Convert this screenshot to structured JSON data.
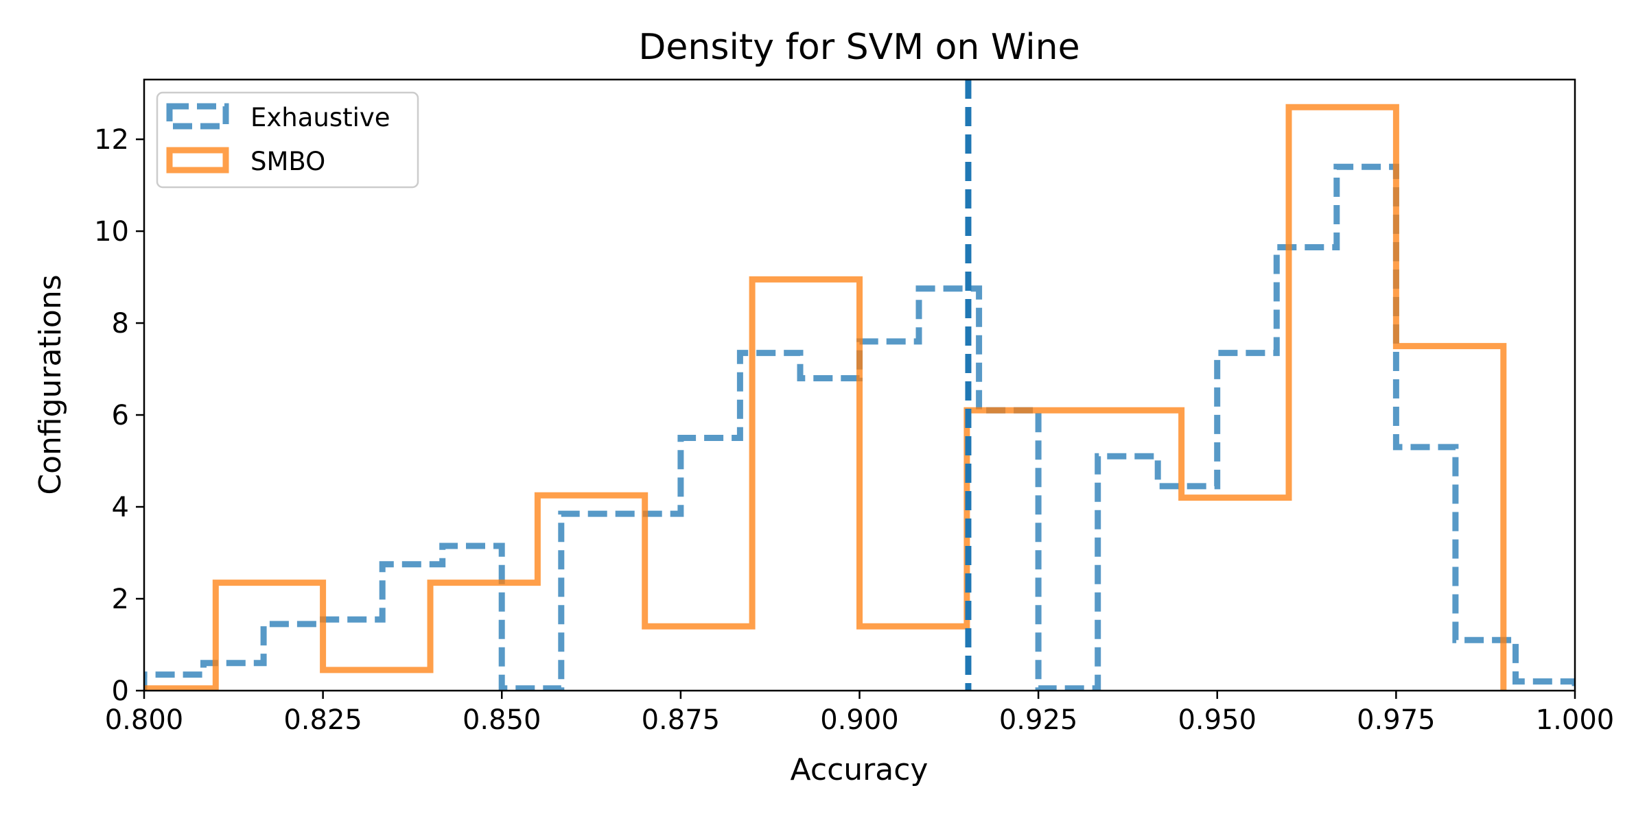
{
  "chart_data": {
    "type": "histogram",
    "title": "Density for SVM on Wine",
    "xlabel": "Accuracy",
    "ylabel": "Configurations",
    "xlim": [
      0.8,
      1.0
    ],
    "ylim": [
      0,
      13.3
    ],
    "xticks": [
      0.8,
      0.825,
      0.85,
      0.875,
      0.9,
      0.925,
      0.95,
      0.975,
      1.0
    ],
    "xtick_labels": [
      "0.800",
      "0.825",
      "0.850",
      "0.875",
      "0.900",
      "0.925",
      "0.950",
      "0.975",
      "1.000"
    ],
    "yticks": [
      0,
      2,
      4,
      6,
      8,
      10,
      12
    ],
    "ytick_labels": [
      "0",
      "2",
      "4",
      "6",
      "8",
      "10",
      "12"
    ],
    "grid": false,
    "legend_position": "upper left",
    "series": [
      {
        "name": "Exhaustive",
        "color": "#1f77b4",
        "style": "dashed",
        "bin_edges": [
          0.8,
          0.8083,
          0.8167,
          0.825,
          0.8333,
          0.8417,
          0.85,
          0.8583,
          0.8667,
          0.875,
          0.8833,
          0.8917,
          0.9,
          0.9083,
          0.9167,
          0.925,
          0.9333,
          0.9417,
          0.95,
          0.9583,
          0.9667,
          0.975,
          0.9833,
          0.9917,
          1.0
        ],
        "values": [
          0.35,
          0.6,
          1.45,
          1.55,
          2.75,
          3.15,
          0.05,
          3.85,
          3.85,
          5.5,
          7.35,
          6.8,
          7.6,
          8.75,
          6.1,
          0.05,
          5.1,
          4.45,
          7.35,
          9.65,
          11.4,
          5.3,
          1.1,
          0.2
        ]
      },
      {
        "name": "SMBO",
        "color": "#ff7f0e",
        "style": "solid",
        "bin_edges": [
          0.8,
          0.81,
          0.825,
          0.84,
          0.855,
          0.87,
          0.885,
          0.9,
          0.915,
          0.93,
          0.945,
          0.96,
          0.975,
          0.99
        ],
        "values": [
          0.05,
          2.35,
          0.45,
          2.35,
          4.25,
          1.4,
          8.95,
          1.4,
          6.1,
          6.1,
          4.2,
          12.7,
          7.5
        ]
      }
    ],
    "reference_line": {
      "x": 0.9152,
      "color": "#1f77b4",
      "style": "dashed"
    }
  }
}
